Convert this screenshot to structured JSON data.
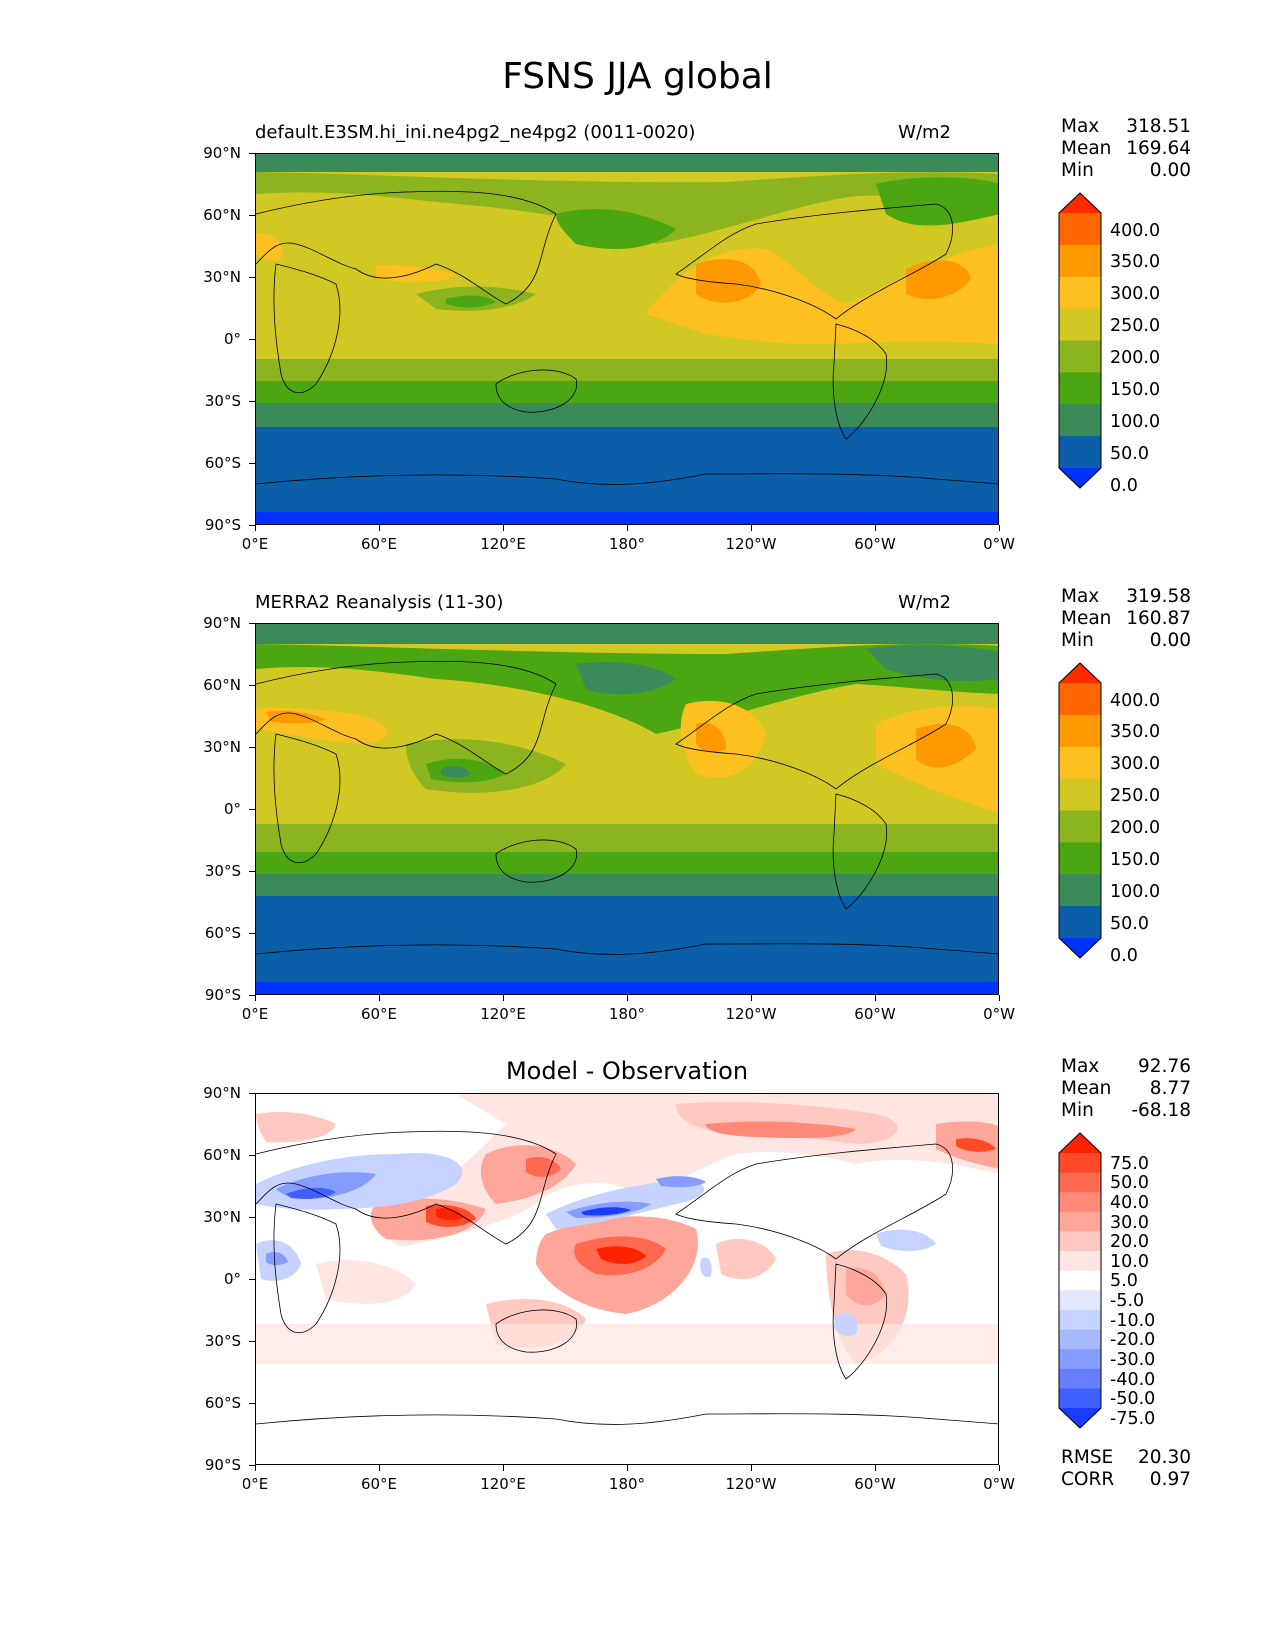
{
  "figure_title": "FSNS JJA global",
  "axes": {
    "lat_ticks": [
      "90°N",
      "60°N",
      "30°N",
      "0°",
      "30°S",
      "60°S",
      "90°S"
    ],
    "lon_ticks": [
      "0°E",
      "60°E",
      "120°E",
      "180°",
      "120°W",
      "60°W",
      "0°W"
    ]
  },
  "panels": [
    {
      "title_left": "default.E3SM.hi_ini.ne4pg2_ne4pg2 (0011-0020)",
      "title_right": "W/m2",
      "title_center": "",
      "stats": [
        {
          "label": "Max",
          "value": "318.51"
        },
        {
          "label": "Mean",
          "value": "169.64"
        },
        {
          "label": "Min",
          "value": "0.00"
        }
      ],
      "colorbar_labels": [
        "400.0",
        "350.0",
        "300.0",
        "250.0",
        "200.0",
        "150.0",
        "100.0",
        "50.0",
        "0.0"
      ],
      "colorbar_colors": [
        "#ff2a00",
        "#ff6600",
        "#ff9900",
        "#fcc020",
        "#d2c823",
        "#8cb41e",
        "#4ba612",
        "#3a8a5a",
        "#0a5fa8",
        "#0033ff"
      ]
    },
    {
      "title_left": "MERRA2 Reanalysis (11-30)",
      "title_right": "W/m2",
      "title_center": "",
      "stats": [
        {
          "label": "Max",
          "value": "319.58"
        },
        {
          "label": "Mean",
          "value": "160.87"
        },
        {
          "label": "Min",
          "value": "0.00"
        }
      ],
      "colorbar_labels": [
        "400.0",
        "350.0",
        "300.0",
        "250.0",
        "200.0",
        "150.0",
        "100.0",
        "50.0",
        "0.0"
      ],
      "colorbar_colors": [
        "#ff2a00",
        "#ff6600",
        "#ff9900",
        "#fcc020",
        "#d2c823",
        "#8cb41e",
        "#4ba612",
        "#3a8a5a",
        "#0a5fa8",
        "#0033ff"
      ]
    },
    {
      "title_left": "",
      "title_right": "",
      "title_center": "Model - Observation",
      "stats": [
        {
          "label": "Max",
          "value": "92.76"
        },
        {
          "label": "Mean",
          "value": "8.77"
        },
        {
          "label": "Min",
          "value": "-68.18"
        }
      ],
      "colorbar_labels": [
        "75.0",
        "50.0",
        "40.0",
        "30.0",
        "20.0",
        "10.0",
        "5.0",
        "-5.0",
        "-10.0",
        "-20.0",
        "-30.0",
        "-40.0",
        "-50.0",
        "-75.0"
      ],
      "colorbar_colors": [
        "#ff2200",
        "#ff4a2a",
        "#ff6a50",
        "#ff8a78",
        "#ffa69a",
        "#ffc8c0",
        "#ffe6e2",
        "#ffffff",
        "#e2e8ff",
        "#c6d2ff",
        "#a6b8ff",
        "#869cff",
        "#6680ff",
        "#4060ff",
        "#1a3cff"
      ],
      "rmse": {
        "label": "RMSE",
        "value": "20.30"
      },
      "corr": {
        "label": "CORR",
        "value": "0.97"
      }
    }
  ]
}
